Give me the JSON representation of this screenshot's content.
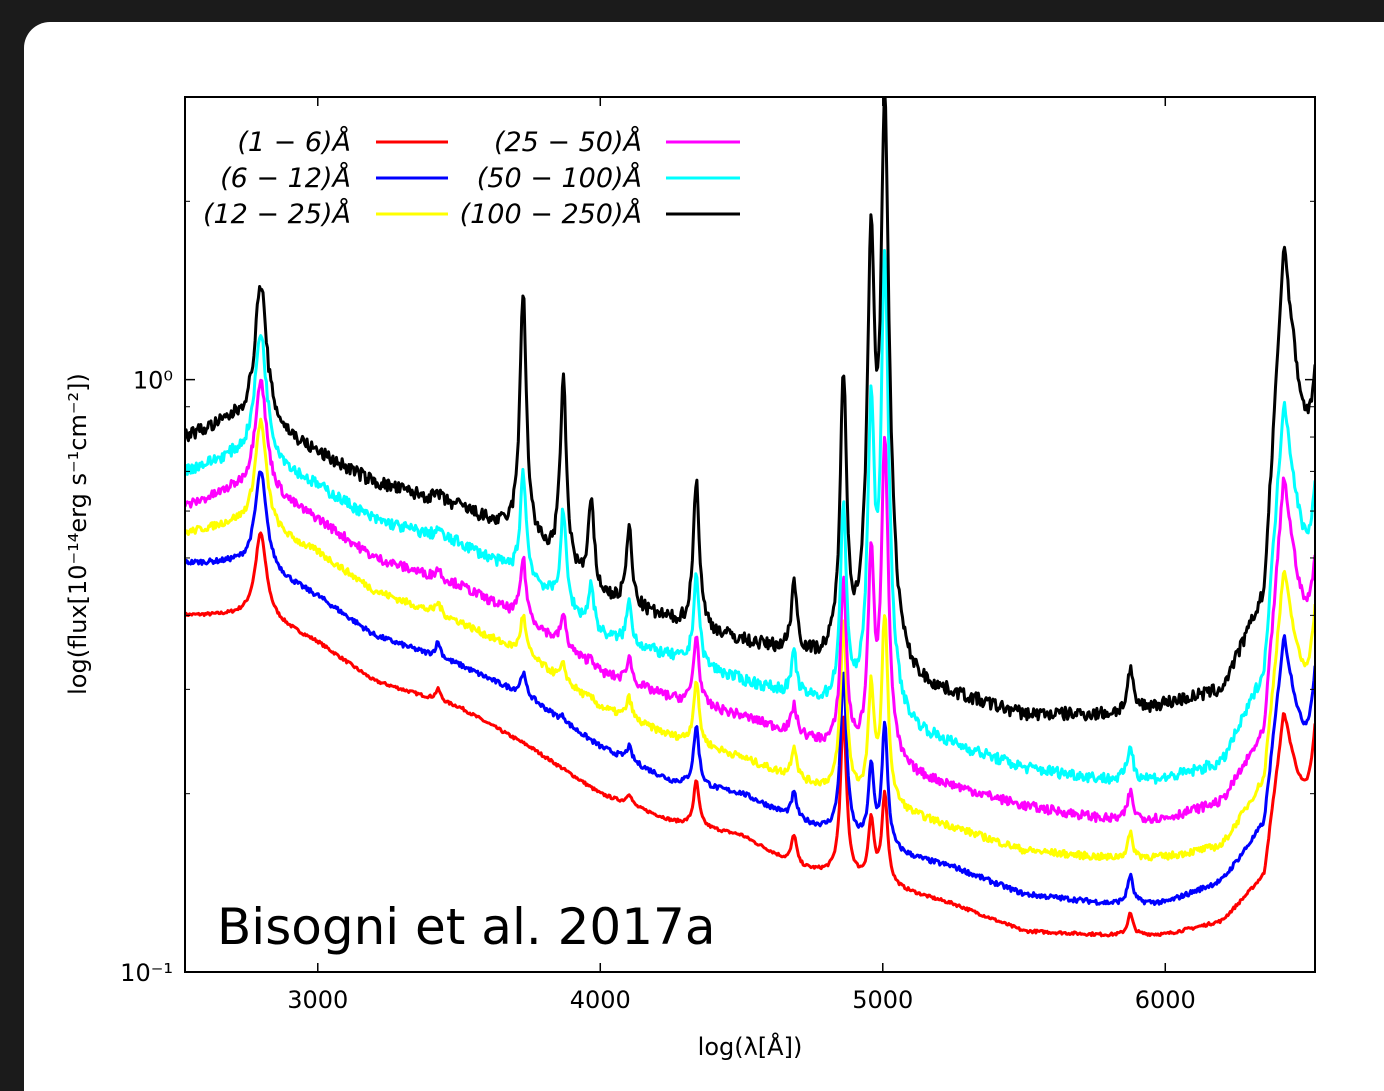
{
  "chart_data": {
    "type": "line",
    "xlabel": "log(λ[Å])",
    "ylabel": "log(flux[10⁻¹⁴erg s⁻¹cm⁻²])",
    "xscale": "linear",
    "yscale": "log",
    "xlim": [
      2530,
      6530
    ],
    "ylim": [
      0.1,
      3.0
    ],
    "xticks": [
      {
        "value": 3000,
        "label": "3000"
      },
      {
        "value": 4000,
        "label": "4000"
      },
      {
        "value": 5000,
        "label": "5000"
      },
      {
        "value": 6000,
        "label": "6000"
      }
    ],
    "yticks": [
      {
        "value": 0.1,
        "label": "10⁻¹"
      },
      {
        "value": 1.0,
        "label": "10⁰"
      }
    ],
    "grid": false,
    "legend_placement": "top-left",
    "annotation": "Bisogni et al. 2017a",
    "series": [
      {
        "name": "(1 − 6)Å",
        "color": "#ff0000",
        "x": [
          2530,
          2700,
          2800,
          3000,
          3200,
          3500,
          3750,
          4000,
          4250,
          4500,
          4700,
          5000,
          5250,
          5500,
          5800,
          6000,
          6200,
          6350,
          6420,
          6530
        ],
        "y": [
          0.4,
          0.4,
          0.4,
          0.36,
          0.31,
          0.28,
          0.24,
          0.2,
          0.18,
          0.17,
          0.15,
          0.14,
          0.13,
          0.117,
          0.115,
          0.115,
          0.12,
          0.14,
          0.25,
          0.115
        ]
      },
      {
        "name": "(6 − 12)Å",
        "color": "#0000ff",
        "x": [
          2530,
          2700,
          2800,
          3000,
          3200,
          3500,
          3750,
          4000,
          4250,
          4500,
          4700,
          5000,
          5250,
          5500,
          5800,
          6000,
          6200,
          6350,
          6420,
          6530
        ],
        "y": [
          0.49,
          0.49,
          0.48,
          0.43,
          0.37,
          0.33,
          0.29,
          0.24,
          0.21,
          0.2,
          0.18,
          0.16,
          0.15,
          0.135,
          0.13,
          0.13,
          0.14,
          0.17,
          0.33,
          0.13
        ]
      },
      {
        "name": "(12 − 25)Å",
        "color": "#ffff00",
        "x": [
          2530,
          2700,
          2800,
          3000,
          3200,
          3500,
          3750,
          4000,
          4250,
          4500,
          4700,
          5000,
          5250,
          5500,
          5800,
          6000,
          6200,
          6350,
          6420,
          6530
        ],
        "y": [
          0.55,
          0.57,
          0.56,
          0.51,
          0.44,
          0.39,
          0.34,
          0.28,
          0.25,
          0.23,
          0.21,
          0.19,
          0.175,
          0.16,
          0.155,
          0.155,
          0.16,
          0.2,
          0.42,
          0.15
        ]
      },
      {
        "name": "(25 − 50)Å",
        "color": "#ff00ff",
        "x": [
          2530,
          2700,
          2800,
          3000,
          3200,
          3500,
          3750,
          4000,
          4250,
          4500,
          4700,
          5000,
          5250,
          5500,
          5800,
          6000,
          6200,
          6350,
          6420,
          6530
        ],
        "y": [
          0.61,
          0.65,
          0.65,
          0.58,
          0.5,
          0.45,
          0.39,
          0.32,
          0.29,
          0.27,
          0.25,
          0.22,
          0.205,
          0.19,
          0.18,
          0.18,
          0.19,
          0.24,
          0.6,
          0.18
        ]
      },
      {
        "name": "(50 − 100)Å",
        "color": "#00ffff",
        "x": [
          2530,
          2700,
          2800,
          3000,
          3200,
          3500,
          3750,
          4000,
          4250,
          4500,
          4700,
          5000,
          5250,
          5500,
          5800,
          6000,
          6200,
          6350,
          6420,
          6530
        ],
        "y": [
          0.7,
          0.74,
          0.74,
          0.66,
          0.58,
          0.53,
          0.46,
          0.37,
          0.34,
          0.31,
          0.29,
          0.26,
          0.24,
          0.22,
          0.21,
          0.21,
          0.22,
          0.3,
          0.8,
          0.22
        ]
      },
      {
        "name": "(100 − 250)Å",
        "color": "#000000",
        "x": [
          2530,
          2700,
          2800,
          3000,
          3200,
          3500,
          3750,
          4000,
          4250,
          4500,
          4700,
          5000,
          5250,
          5500,
          5800,
          6000,
          6200,
          6350,
          6420,
          6530
        ],
        "y": [
          0.8,
          0.85,
          0.84,
          0.75,
          0.67,
          0.61,
          0.53,
          0.43,
          0.39,
          0.36,
          0.34,
          0.3,
          0.29,
          0.27,
          0.27,
          0.28,
          0.29,
          0.4,
          1.4,
          0.28
        ]
      }
    ],
    "emission_lines": [
      {
        "x": 2798,
        "peak": [
          0.55,
          0.7,
          0.85,
          1.0,
          1.2,
          1.45
        ]
      },
      {
        "x": 3426,
        "peak": [
          0.3,
          0.36,
          0.42,
          0.48,
          0.56,
          0.64
        ]
      },
      {
        "x": 3727,
        "peak": [
          0.24,
          0.32,
          0.4,
          0.5,
          0.7,
          1.4
        ]
      },
      {
        "x": 3869,
        "peak": [
          0.21,
          0.27,
          0.33,
          0.4,
          0.6,
          1.0
        ]
      },
      {
        "x": 3968,
        "peak": [
          0.19,
          0.24,
          0.29,
          0.34,
          0.45,
          0.62
        ]
      },
      {
        "x": 4102,
        "peak": [
          0.2,
          0.24,
          0.29,
          0.34,
          0.42,
          0.56
        ]
      },
      {
        "x": 4340,
        "peak": [
          0.21,
          0.26,
          0.31,
          0.37,
          0.47,
          0.68
        ]
      },
      {
        "x": 4686,
        "peak": [
          0.17,
          0.2,
          0.24,
          0.28,
          0.34,
          0.45
        ]
      },
      {
        "x": 4861,
        "peak": [
          0.27,
          0.32,
          0.39,
          0.46,
          0.6,
          1.0
        ]
      },
      {
        "x": 4959,
        "peak": [
          0.18,
          0.22,
          0.3,
          0.5,
          0.9,
          1.8
        ]
      },
      {
        "x": 5007,
        "peak": [
          0.2,
          0.26,
          0.4,
          0.8,
          1.6,
          3.0
        ]
      },
      {
        "x": 5876,
        "peak": [
          0.125,
          0.145,
          0.17,
          0.2,
          0.24,
          0.32
        ]
      },
      {
        "x": 6563,
        "peak": [
          0.5,
          0.65,
          0.85,
          1.05,
          1.4,
          2.3
        ]
      }
    ]
  }
}
